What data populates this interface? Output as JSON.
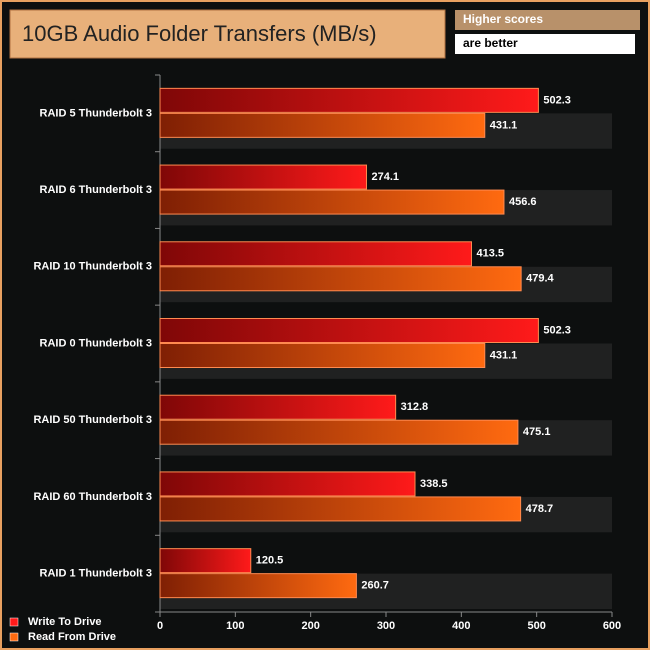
{
  "chart_data": {
    "type": "bar",
    "orientation": "horizontal",
    "title": "10GB Audio Folder Transfers (MB/s)",
    "annotations": [
      "Higher scores",
      "are better"
    ],
    "categories": [
      "RAID 5 Thunderbolt 3",
      "RAID 6 Thunderbolt 3",
      "RAID 10 Thunderbolt 3",
      "RAID 0 Thunderbolt 3",
      "RAID 50 Thunderbolt 3",
      "RAID 60 Thunderbolt 3",
      "RAID 1 Thunderbolt 3"
    ],
    "series": [
      {
        "name": "Write To Drive",
        "color": "#ff1a1a",
        "values": [
          502.3,
          274.1,
          413.5,
          502.3,
          312.8,
          338.5,
          120.5
        ]
      },
      {
        "name": "Read From Drive",
        "color": "#ff6a10",
        "values": [
          431.1,
          456.6,
          479.4,
          431.1,
          475.1,
          478.7,
          260.7
        ]
      }
    ],
    "xlim": [
      0,
      600
    ],
    "xticks": [
      0,
      100,
      200,
      300,
      400,
      500,
      600
    ],
    "legend": "bottom-left"
  }
}
